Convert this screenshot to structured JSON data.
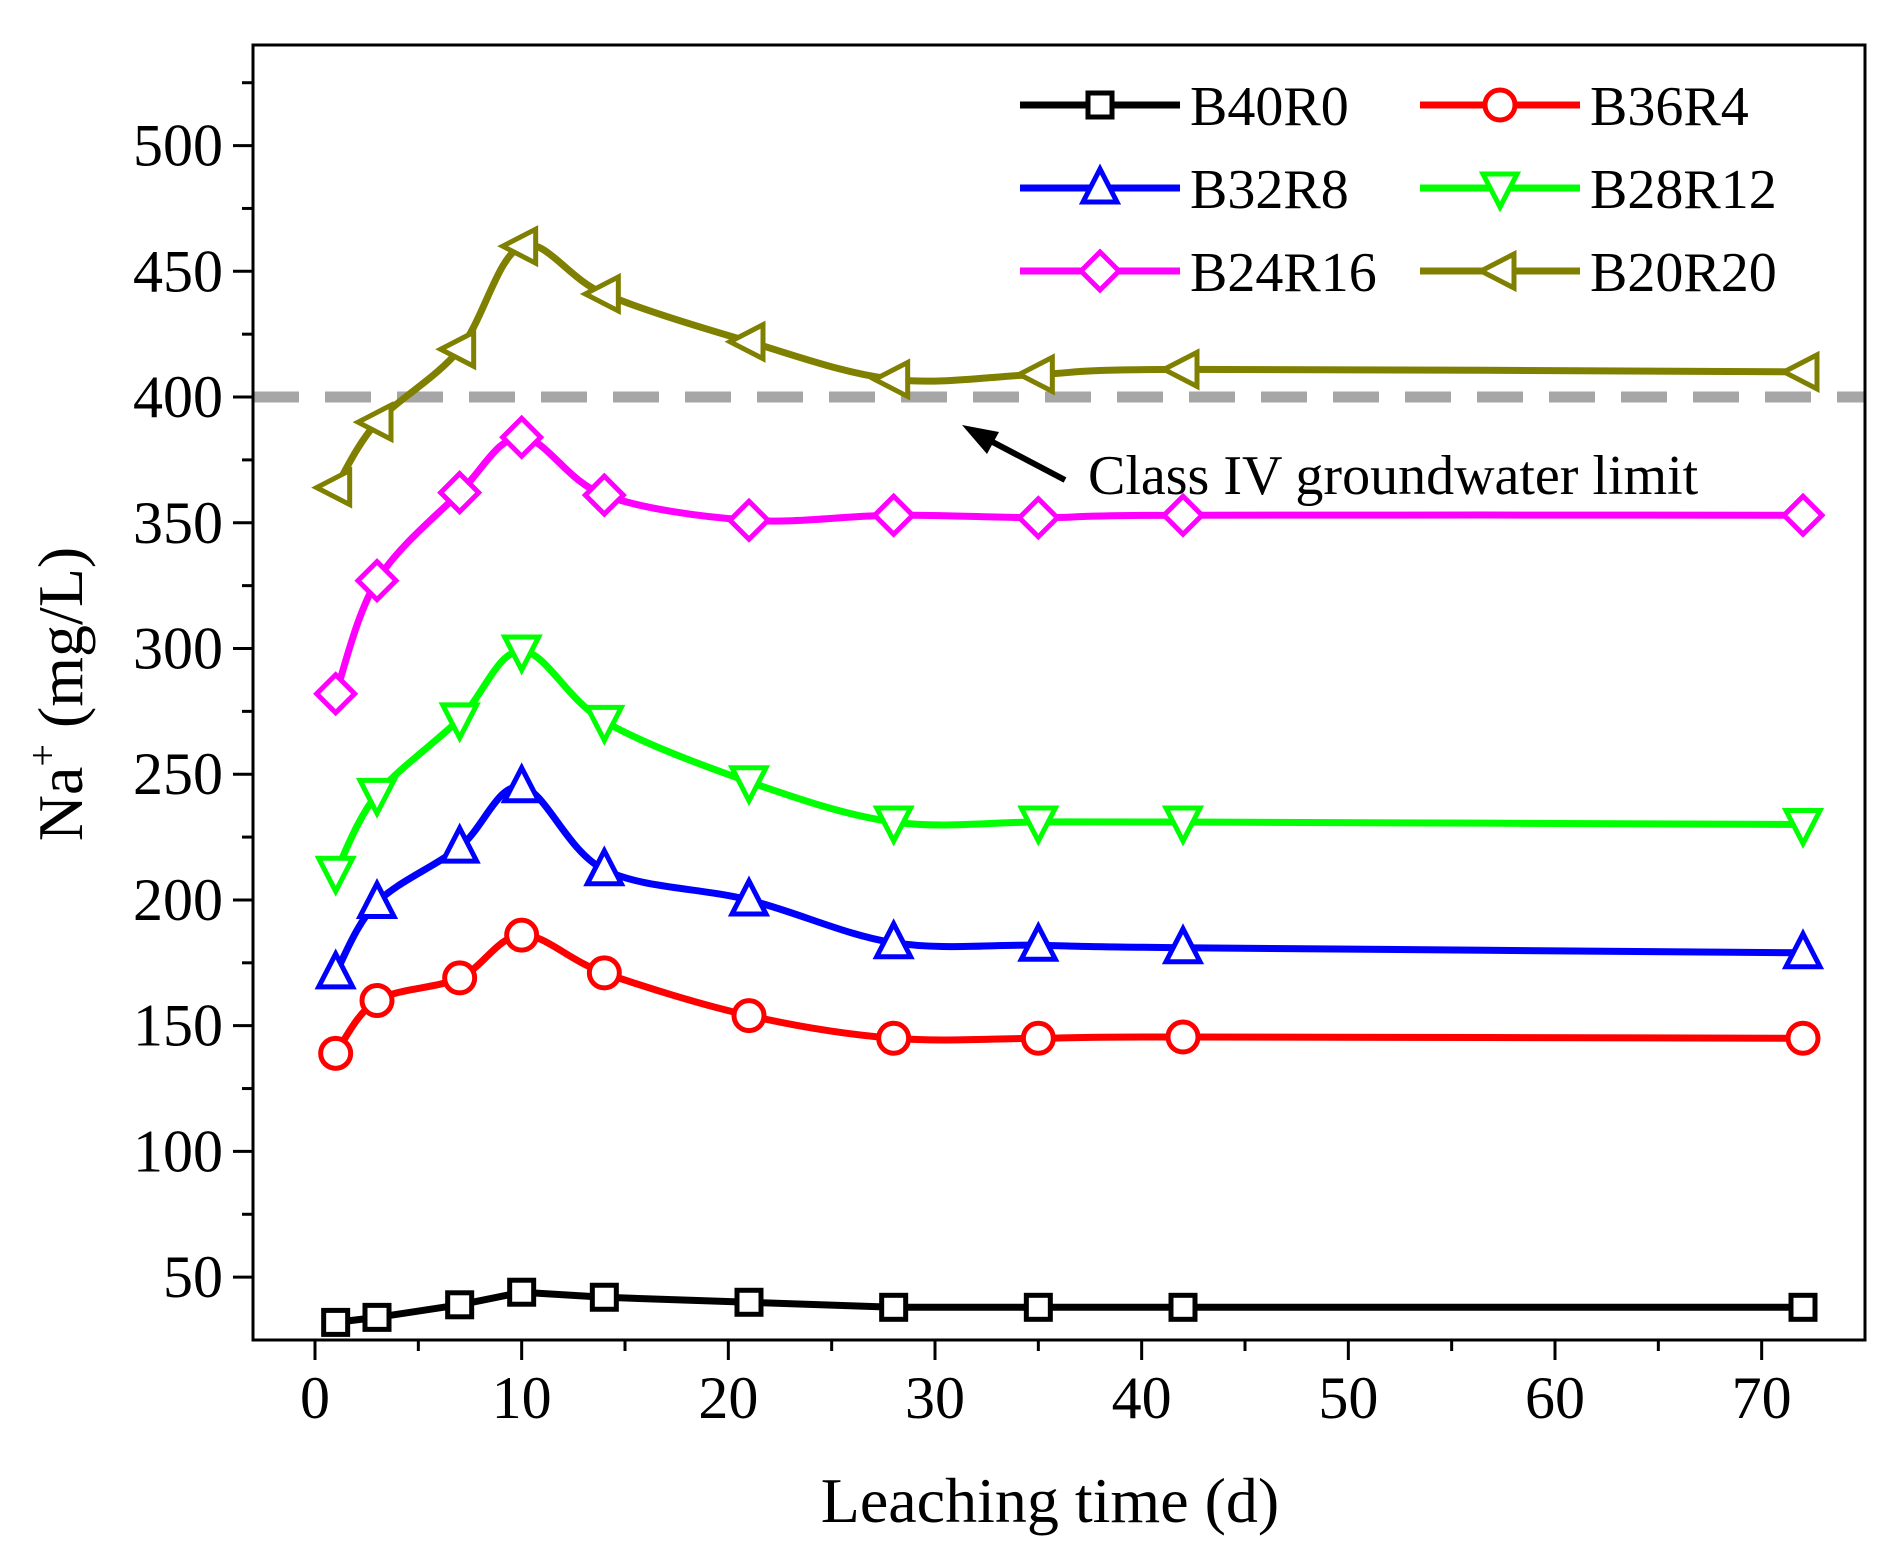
{
  "chart_data": {
    "type": "line",
    "title": "",
    "xlabel": "Leaching time (d)",
    "ylabel_main": "Na",
    "ylabel_sup": "+",
    "ylabel_unit": " (mg/L)",
    "xlim": [
      -3,
      75
    ],
    "ylim": [
      25,
      540
    ],
    "xticks": [
      0,
      10,
      20,
      30,
      40,
      50,
      60,
      70
    ],
    "yticks": [
      50,
      100,
      150,
      200,
      250,
      300,
      350,
      400,
      450,
      500
    ],
    "x": [
      1,
      3,
      7,
      10,
      14,
      21,
      28,
      35,
      42,
      72
    ],
    "series": [
      {
        "name": "B40R0",
        "color": "#000000",
        "marker": "square",
        "values": [
          32,
          34,
          39,
          44,
          42,
          40,
          38,
          38,
          38,
          38
        ]
      },
      {
        "name": "B36R4",
        "color": "#ff0000",
        "marker": "circle",
        "values": [
          139,
          160,
          169,
          186,
          171,
          154,
          145,
          145,
          145.5,
          145
        ]
      },
      {
        "name": "B32R8",
        "color": "#0000ff",
        "marker": "triangle-up",
        "values": [
          171,
          199,
          221,
          245,
          212,
          200,
          183,
          182,
          181,
          179
        ]
      },
      {
        "name": "B28R12",
        "color": "#00ff00",
        "marker": "triangle-down",
        "values": [
          211,
          242,
          272,
          299,
          271,
          247,
          231,
          231,
          231,
          230
        ]
      },
      {
        "name": "B24R16",
        "color": "#ff00ff",
        "marker": "diamond",
        "values": [
          282,
          327,
          362,
          384,
          361,
          351,
          353,
          352,
          353,
          353
        ]
      },
      {
        "name": "B20R20",
        "color": "#808000",
        "marker": "triangle-left",
        "values": [
          364,
          390,
          419,
          460,
          441,
          422,
          407,
          409,
          411,
          410
        ]
      }
    ],
    "reference_line": {
      "y": 400,
      "color": "#a6a6a6",
      "label": "Class IV groundwater limit"
    },
    "legend_position": "top-right"
  }
}
